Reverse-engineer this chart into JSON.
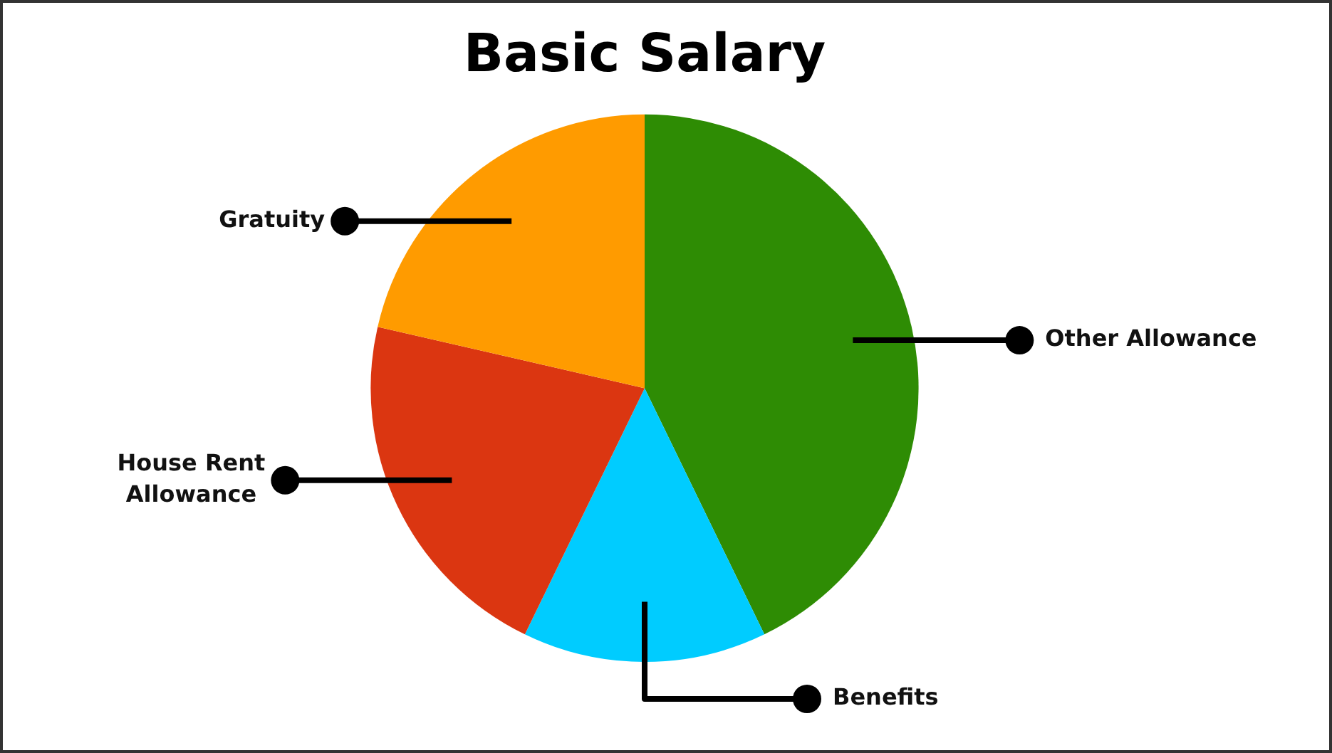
{
  "chart_data": {
    "type": "pie",
    "title": "Basic Salary",
    "categories": [
      "Other Allowance",
      "Benefits",
      "House Rent Allowance",
      "Gratuity"
    ],
    "values": [
      42.8,
      14.4,
      21.4,
      21.4
    ],
    "colors": [
      "#2e8c04",
      "#00ccff",
      "#db3611",
      "#ff9b00"
    ]
  }
}
